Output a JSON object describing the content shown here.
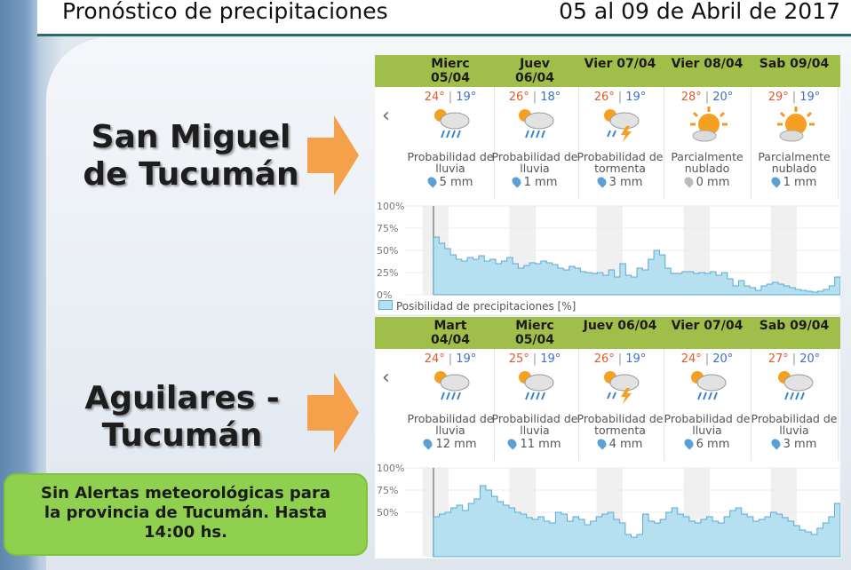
{
  "header": {
    "title": "Pronóstico de precipitaciones",
    "date_range": "05 al 09 de Abril de 2017"
  },
  "locations": [
    {
      "name_line1": "San Miguel",
      "name_line2": "de Tucumán",
      "days": [
        {
          "label_line1": "Mierc",
          "label_line2": "05/04",
          "max": "24°",
          "min": "19°",
          "icon": "rain-cloud-sun-icon",
          "desc_line1": "Probabilidad de",
          "desc_line2": "lluvia",
          "mm": "5 mm"
        },
        {
          "label_line1": "Juev",
          "label_line2": "06/04",
          "max": "26°",
          "min": "18°",
          "icon": "rain-cloud-sun-icon",
          "desc_line1": "Probabilidad de",
          "desc_line2": "lluvia",
          "mm": "1 mm"
        },
        {
          "label_line1": "Vier 07/04",
          "label_line2": "",
          "max": "26°",
          "min": "19°",
          "icon": "storm-cloud-sun-icon",
          "desc_line1": "Probabilidad de",
          "desc_line2": "tormenta",
          "mm": "3 mm"
        },
        {
          "label_line1": "Vier 08/04",
          "label_line2": "",
          "max": "28°",
          "min": "20°",
          "icon": "sun-cloud-icon",
          "desc_line1": "Parcialmente",
          "desc_line2": "nublado",
          "mm": "0 mm"
        },
        {
          "label_line1": "Sab 09/04",
          "label_line2": "",
          "max": "29°",
          "min": "19°",
          "icon": "sun-cloud-icon",
          "desc_line1": "Parcialmente",
          "desc_line2": "nublado",
          "mm": "1 mm"
        }
      ],
      "chart_data": {
        "type": "area",
        "yticks": [
          "100%",
          "75%",
          "50%",
          "25%",
          "0%"
        ],
        "ylim": [
          0,
          100
        ],
        "legend": "Posibilidad de precipitaciones [%]",
        "values": [
          65,
          58,
          52,
          45,
          40,
          38,
          42,
          40,
          44,
          38,
          40,
          35,
          38,
          42,
          35,
          30,
          33,
          36,
          35,
          38,
          36,
          34,
          30,
          28,
          32,
          30,
          26,
          25,
          24,
          25,
          22,
          28,
          20,
          35,
          22,
          20,
          30,
          28,
          40,
          50,
          45,
          30,
          24,
          24,
          26,
          26,
          24,
          25,
          24,
          26,
          22,
          25,
          18,
          10,
          16,
          10,
          8,
          5,
          10,
          12,
          14,
          12,
          10,
          8,
          6,
          5,
          4,
          3,
          4,
          6,
          10,
          20
        ]
      }
    },
    {
      "name_line1": "Aguilares -",
      "name_line2": "Tucumán",
      "days": [
        {
          "label_line1": "Mart",
          "label_line2": "04/04",
          "max": "24°",
          "min": "19°",
          "icon": "rain-cloud-sun-icon",
          "desc_line1": "Probabilidad de",
          "desc_line2": "lluvia",
          "mm": "12 mm"
        },
        {
          "label_line1": "Mierc",
          "label_line2": "05/04",
          "max": "25°",
          "min": "19°",
          "icon": "rain-cloud-sun-icon",
          "desc_line1": "Probabilidad de",
          "desc_line2": "lluvia",
          "mm": "11 mm"
        },
        {
          "label_line1": "Juev 06/04",
          "label_line2": "",
          "max": "26°",
          "min": "19°",
          "icon": "storm-cloud-sun-icon",
          "desc_line1": "Probabilidad de",
          "desc_line2": "tormenta",
          "mm": "4 mm"
        },
        {
          "label_line1": "Vier 07/04",
          "label_line2": "",
          "max": "24°",
          "min": "20°",
          "icon": "rain-cloud-sun-icon",
          "desc_line1": "Probabilidad de",
          "desc_line2": "lluvia",
          "mm": "6 mm"
        },
        {
          "label_line1": "Sab 09/04",
          "label_line2": "",
          "max": "27°",
          "min": "20°",
          "icon": "rain-cloud-sun-icon",
          "desc_line1": "Probabilidad de",
          "desc_line2": "lluvia",
          "mm": "3 mm"
        }
      ],
      "chart_data": {
        "type": "area",
        "yticks": [
          "100%",
          "75%",
          "50%"
        ],
        "ylim": [
          0,
          100
        ],
        "legend": "",
        "values": [
          45,
          48,
          50,
          55,
          58,
          52,
          60,
          65,
          80,
          75,
          68,
          62,
          58,
          55,
          50,
          48,
          44,
          42,
          45,
          40,
          38,
          50,
          48,
          40,
          45,
          42,
          36,
          40,
          45,
          48,
          50,
          42,
          38,
          25,
          22,
          25,
          48,
          40,
          38,
          42,
          50,
          55,
          48,
          45,
          40,
          38,
          42,
          45,
          40,
          38,
          45,
          52,
          55,
          48,
          45,
          40,
          42,
          45,
          50,
          48,
          44,
          40,
          35,
          30,
          28,
          25,
          32,
          38,
          45,
          60
        ]
      }
    }
  ],
  "alert": {
    "line1": "Sin Alertas meteorológicas para",
    "line2": "la provincia de Tucumán. Hasta",
    "line3": "14:00 hs."
  },
  "colors": {
    "header_bar": "#9fbe4a",
    "area_fill": "#b6dff0",
    "area_stroke": "#5aaad6",
    "alert_bg": "#8fd04f",
    "arrow": "#f5a04a"
  }
}
